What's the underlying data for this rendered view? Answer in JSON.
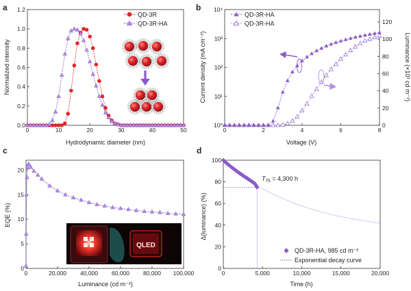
{
  "colors": {
    "purple": "#8a5cc8",
    "purple_light": "#b28ee0",
    "red": "#e0262b",
    "sphere_dark": "#8f0f12",
    "axis": "#333333"
  },
  "chart_data": [
    {
      "panel": "a",
      "type": "line",
      "xlabel": "Hydrodynamic diameter (nm)",
      "ylabel": "Normalized intensity",
      "xlim": [
        0,
        50
      ],
      "ylim": [
        0,
        1.2
      ],
      "xticks": [
        "0",
        "10",
        "20",
        "30",
        "40",
        "50"
      ],
      "yticks": [
        "0.0",
        "0.2",
        "0.4",
        "0.6",
        "0.8",
        "1.0",
        "1.2"
      ],
      "legend_position": "top-right",
      "series": [
        {
          "name": "QD-3R",
          "marker": "circle",
          "color": "#e0262b",
          "x": [
            0,
            1,
            2,
            3,
            4,
            5,
            6,
            7,
            8,
            9,
            10,
            11,
            12,
            13,
            14,
            15,
            16,
            17,
            18,
            19,
            20,
            21,
            22,
            23,
            24,
            25,
            26,
            27,
            28,
            29,
            30,
            31,
            32,
            33,
            34,
            35,
            36,
            37,
            38,
            39,
            40,
            41,
            42,
            43,
            44,
            45,
            46,
            47,
            48,
            49,
            50
          ],
          "y": [
            0,
            0,
            0,
            0,
            0,
            0,
            0,
            0,
            0,
            0,
            0,
            0,
            0.02,
            0.12,
            0.36,
            0.62,
            0.85,
            0.96,
            1.0,
            0.99,
            0.92,
            0.8,
            0.63,
            0.46,
            0.3,
            0.18,
            0.1,
            0.05,
            0.02,
            0.01,
            0,
            0,
            0,
            0,
            0,
            0,
            0,
            0,
            0,
            0,
            0,
            0,
            0,
            0,
            0,
            0,
            0,
            0,
            0,
            0,
            0
          ]
        },
        {
          "name": "QD-3R-HA",
          "marker": "triangle",
          "color": "#8a5cc8",
          "x": [
            0,
            1,
            2,
            3,
            4,
            5,
            6,
            7,
            8,
            9,
            10,
            11,
            12,
            13,
            14,
            15,
            16,
            17,
            18,
            19,
            20,
            21,
            22,
            23,
            24,
            25,
            26,
            27,
            28,
            29,
            30,
            31,
            32,
            33,
            34,
            35,
            36,
            37,
            38,
            39,
            40,
            41,
            42,
            43,
            44,
            45,
            46,
            47,
            48,
            49,
            50
          ],
          "y": [
            0,
            0,
            0,
            0,
            0,
            0,
            0,
            0.01,
            0.05,
            0.14,
            0.3,
            0.52,
            0.74,
            0.9,
            0.98,
            1.0,
            0.99,
            0.95,
            0.88,
            0.78,
            0.66,
            0.53,
            0.41,
            0.3,
            0.21,
            0.13,
            0.08,
            0.04,
            0.02,
            0.01,
            0,
            0,
            0,
            0,
            0,
            0,
            0,
            0,
            0,
            0,
            0,
            0,
            0,
            0,
            0,
            0,
            0,
            0,
            0,
            0,
            0
          ]
        }
      ]
    },
    {
      "panel": "b",
      "type": "line",
      "xlabel": "Voltage (V)",
      "ylabel": "Current density (mA cm⁻²)",
      "ylabel_right": "Luminance (×10³ cd m⁻²)",
      "xlim": [
        0,
        8
      ],
      "ylim": [
        1,
        10000
      ],
      "y_scale": "log",
      "ylim_right": [
        0,
        120
      ],
      "xticks": [
        "0",
        "2",
        "4",
        "6",
        "8"
      ],
      "yticks": [
        "10⁰",
        "10¹",
        "10²",
        "10³",
        "10⁴"
      ],
      "yticks_right": [
        "0",
        "20",
        "40",
        "60",
        "80",
        "100",
        "120"
      ],
      "legend_position": "top-left",
      "series": [
        {
          "name": "QD-3R-HA",
          "marker": "filled-triangle",
          "axis": "left",
          "x": [
            0,
            0.25,
            0.5,
            0.75,
            1,
            1.25,
            1.5,
            1.75,
            2,
            2.25,
            2.5,
            2.75,
            3,
            3.25,
            3.5,
            3.75,
            4,
            4.25,
            4.5,
            4.75,
            5,
            5.25,
            5.5,
            5.75,
            6,
            6.25,
            6.5,
            6.75,
            7,
            7.25,
            7.5,
            7.75,
            8
          ],
          "y": [
            1,
            1,
            1,
            1,
            1,
            1,
            1,
            1,
            1,
            1,
            1.4,
            4,
            14,
            35,
            70,
            115,
            170,
            230,
            300,
            380,
            460,
            550,
            640,
            730,
            820,
            920,
            1010,
            1110,
            1200,
            1300,
            1400,
            1500,
            1600
          ]
        },
        {
          "name": "QD-3R-HA",
          "marker": "open-triangle",
          "axis": "right",
          "x": [
            0,
            0.25,
            0.5,
            0.75,
            1,
            1.25,
            1.5,
            1.75,
            2,
            2.25,
            2.5,
            2.75,
            3,
            3.25,
            3.5,
            3.75,
            4,
            4.25,
            4.5,
            4.75,
            5,
            5.25,
            5.5,
            5.75,
            6,
            6.25,
            6.5,
            6.75,
            7,
            7.25,
            7.5,
            7.75,
            8
          ],
          "y": [
            0,
            0,
            0,
            0,
            0,
            0,
            0,
            0,
            0,
            0,
            0,
            0,
            0.5,
            2,
            5,
            10,
            17,
            25,
            34,
            42,
            50,
            58,
            65,
            71,
            77,
            82,
            87,
            91,
            95,
            98,
            100,
            102,
            104
          ]
        }
      ]
    },
    {
      "panel": "c",
      "type": "line",
      "xlabel": "Luminance (cd m⁻²)",
      "ylabel": "EQE (%)",
      "xlim": [
        0,
        100000
      ],
      "ylim": [
        0,
        22
      ],
      "xticks": [
        "0",
        "20,000",
        "40,000",
        "60,000",
        "80,000",
        "100,000"
      ],
      "yticks": [
        "0",
        "5",
        "10",
        "15",
        "20"
      ],
      "inset_label": "QLED",
      "series": [
        {
          "name": "",
          "marker": "triangle",
          "x": [
            0,
            100,
            300,
            600,
            1000,
            1500,
            2000,
            3000,
            5000,
            7500,
            10000,
            15000,
            20000,
            25000,
            30000,
            35000,
            40000,
            45000,
            50000,
            55000,
            60000,
            65000,
            70000,
            75000,
            80000,
            85000,
            90000,
            95000,
            100000
          ],
          "y": [
            0.5,
            7,
            15,
            18.5,
            20.5,
            21.2,
            21.1,
            20.6,
            19.8,
            19.0,
            18.2,
            16.8,
            15.8,
            15.0,
            14.4,
            13.9,
            13.4,
            13.0,
            12.7,
            12.4,
            12.2,
            12.0,
            11.8,
            11.6,
            11.5,
            11.4,
            11.2,
            11.1,
            11.0
          ]
        }
      ]
    },
    {
      "panel": "d",
      "type": "scatter",
      "xlabel": "Time (h)",
      "ylabel": "Δ(luminance) (%)",
      "xlim": [
        0,
        20000
      ],
      "ylim": [
        0,
        100
      ],
      "xticks": [
        "0",
        "5,000",
        "10,000",
        "15,000",
        "20,000"
      ],
      "yticks": [
        "0",
        "20",
        "40",
        "60",
        "80",
        "100"
      ],
      "annotation": {
        "prefix": "T",
        "sub": "75",
        "suffix": " = 4,300 h",
        "x": 4300,
        "y": 75
      },
      "legend_position": "bottom-right",
      "series": [
        {
          "name": "QD-3R-HA, 985 cd m⁻²",
          "marker": "diamond",
          "x": [
            0,
            100,
            200,
            300,
            400,
            500,
            600,
            700,
            800,
            900,
            1000,
            1100,
            1200,
            1300,
            1400,
            1500,
            1600,
            1700,
            1800,
            1900,
            2000,
            2100,
            2200,
            2300,
            2400,
            2500,
            2600,
            2700,
            2800,
            2900,
            3000,
            3100,
            3200,
            3300,
            3400,
            3500,
            3600,
            3700,
            3800,
            3900,
            4000,
            4100,
            4200,
            4300
          ],
          "y": [
            100,
            99.3,
            98.7,
            98.0,
            97.4,
            96.8,
            96.2,
            95.6,
            95.0,
            94.4,
            93.8,
            93.3,
            92.7,
            92.1,
            91.6,
            91.0,
            90.5,
            90.0,
            89.4,
            88.9,
            88.4,
            87.9,
            87.4,
            86.9,
            86.4,
            85.9,
            85.4,
            84.9,
            84.4,
            83.9,
            83.4,
            83.0,
            82.5,
            82.0,
            81.5,
            81.0,
            80.5,
            80.0,
            79.5,
            79.0,
            78.5,
            77.5,
            76.2,
            75.0
          ]
        },
        {
          "name": "Exponential decay curve",
          "marker": "dotted-line",
          "x": [
            0,
            1000,
            2000,
            3000,
            4000,
            5000,
            6000,
            7000,
            8000,
            9000,
            10000,
            11000,
            12000,
            13000,
            14000,
            15000,
            16000,
            17000,
            18000,
            19000,
            20000
          ],
          "y": [
            100,
            93.5,
            87.5,
            82.0,
            77.5,
            73.5,
            69.8,
            66.4,
            63.3,
            60.4,
            57.8,
            55.4,
            53.2,
            51.2,
            49.4,
            47.8,
            46.4,
            45.1,
            43.9,
            42.8,
            41.8
          ]
        }
      ]
    }
  ]
}
